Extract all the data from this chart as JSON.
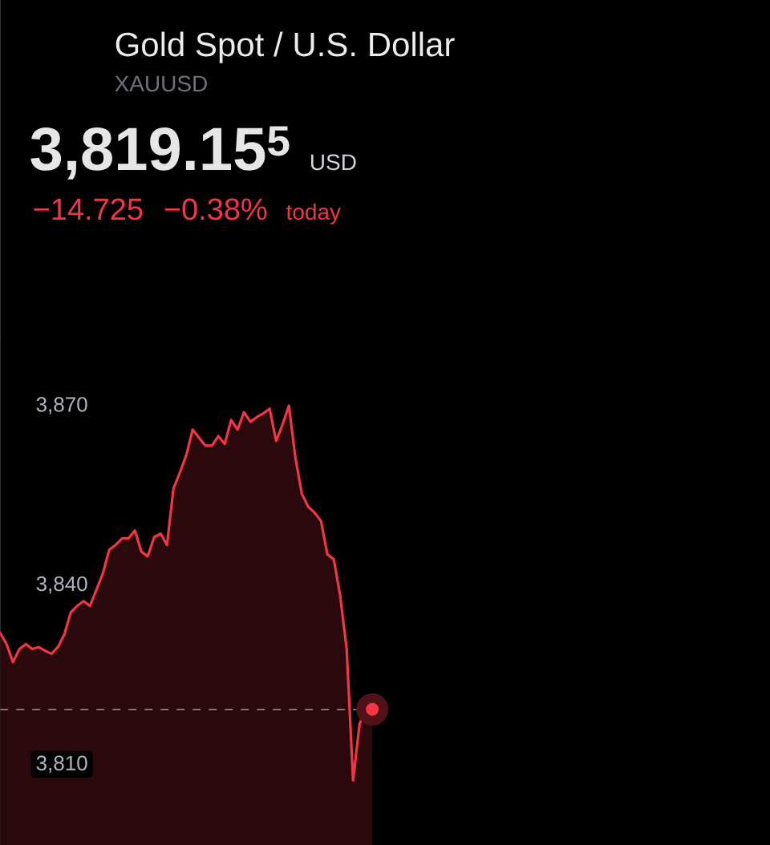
{
  "chart_data": {
    "type": "area",
    "title": "Gold Spot / U.S. Dollar",
    "subtitle": "XAUUSD",
    "annotations": [
      "3,819.15$^{5}$",
      "USD",
      "−14.725",
      "−0.38%",
      "today"
    ],
    "categories": [
      null,
      null,
      null,
      null,
      null,
      null,
      null,
      null,
      null,
      null,
      null,
      null,
      null,
      null,
      null,
      null,
      null,
      null,
      null,
      null,
      null,
      null,
      null,
      null,
      null,
      null,
      null,
      null,
      null,
      null,
      null,
      null,
      null,
      null,
      null,
      null,
      null,
      null,
      null,
      null,
      null,
      null,
      null,
      null,
      null,
      null,
      null,
      null,
      null,
      null,
      null,
      null,
      null,
      null,
      null,
      null,
      null,
      null,
      null,
      null,
      null,
      null,
      null,
      null,
      null,
      null,
      null,
      null,
      null,
      null,
      null,
      null,
      null,
      null,
      null,
      null,
      null,
      null,
      null,
      null,
      null,
      null,
      null,
      null,
      null,
      null,
      null,
      null,
      null,
      null,
      null,
      null,
      null,
      null,
      null,
      null,
      null,
      null,
      null,
      null,
      null,
      null,
      null,
      null,
      null,
      null,
      null,
      null,
      null,
      null,
      null,
      null,
      null,
      null,
      null,
      null,
      null,
      null,
      null,
      null,
      null
    ],
    "series": [
      {
        "color": "#f23645",
        "values": [
          3832.0,
          3830.1,
          3827.1,
          3829.3,
          3830.1,
          3829.3,
          3829.6,
          3829.0,
          3828.5,
          3829.6,
          3831.7,
          3835.4,
          3836.5,
          3837.3,
          3836.5,
          3839.2,
          3841.9,
          3845.9,
          3846.7,
          3847.8,
          3847.8,
          3849.1,
          3845.6,
          3844.8,
          3848.0,
          3848.6,
          3846.7,
          3856.1,
          3858.8,
          3861.7,
          3866.0,
          3864.6,
          3863.3,
          3863.3,
          3864.9,
          3863.6,
          3867.6,
          3866.0,
          3868.9,
          3867.3,
          3868.1,
          3868.7,
          3869.5,
          3864.1,
          3866.8,
          3870.0,
          3861.4,
          3855.3,
          3853.1,
          3852.1,
          3850.7,
          3845.1,
          3844.3,
          3838.1,
          3829.3,
          3807.3,
          3816.7,
          3819.4,
          3819.2,
          null,
          null,
          null,
          null,
          null,
          null,
          null,
          null,
          null,
          null,
          null,
          null,
          null,
          null,
          null,
          null,
          null,
          null,
          null,
          null,
          null,
          null,
          null,
          null,
          null,
          null,
          null,
          null,
          null,
          null,
          null,
          null,
          null,
          null,
          null,
          null,
          null,
          null,
          null,
          null,
          null,
          null,
          null,
          null,
          null,
          null,
          null,
          null,
          null,
          null,
          null,
          null,
          null,
          null,
          null,
          null,
          null,
          null,
          null,
          null,
          null,
          null
        ]
      },
      {
        "type": "scatter",
        "color": "#f23645",
        "marker": "circle",
        "values": [
          null,
          null,
          null,
          null,
          null,
          null,
          null,
          null,
          null,
          null,
          null,
          null,
          null,
          null,
          null,
          null,
          null,
          null,
          null,
          null,
          null,
          null,
          null,
          null,
          null,
          null,
          null,
          null,
          null,
          null,
          null,
          null,
          null,
          null,
          null,
          null,
          null,
          null,
          null,
          null,
          null,
          null,
          null,
          null,
          null,
          null,
          null,
          null,
          null,
          null,
          null,
          null,
          null,
          null,
          null,
          null,
          null,
          null,
          3819.2,
          null,
          null,
          null,
          null,
          null,
          null,
          null,
          null,
          null,
          null,
          null,
          null,
          null,
          null,
          null,
          null,
          null,
          null,
          null,
          null,
          null,
          null,
          null,
          null,
          null,
          null,
          null,
          null,
          null,
          null,
          null,
          null,
          null,
          null,
          null,
          null,
          null,
          null,
          null,
          null,
          null,
          null,
          null,
          null,
          null,
          null,
          null,
          null,
          null,
          null,
          null,
          null,
          null,
          null,
          null,
          null,
          null,
          null,
          null,
          null,
          null,
          null
        ]
      }
    ],
    "ylim": [
      3796.5,
      3881
    ],
    "yticks": [
      {
        "value": 3810,
        "label": "3,810"
      },
      {
        "value": 3840,
        "label": "3,840"
      },
      {
        "value": 3870,
        "label": "3,870"
      }
    ],
    "ref_lines": [
      {
        "axis": "y",
        "value": 3819.155,
        "line_style": "dashed",
        "color": "#868993"
      }
    ]
  }
}
